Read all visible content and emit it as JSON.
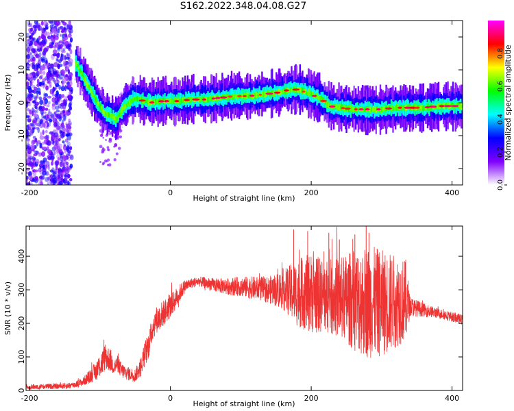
{
  "title": "S162.2022.348.04.08.G27",
  "chart_data": [
    {
      "type": "heatmap",
      "xlabel": "Height of straight line (km)",
      "ylabel": "Frequency (Hz)",
      "xlim": [
        -205,
        415
      ],
      "ylim": [
        -25,
        25
      ],
      "xticks": [
        -200,
        0,
        200,
        400
      ],
      "yticks": [
        -20,
        -10,
        0,
        10,
        20
      ],
      "colorbar": {
        "label": "Normalized spectral amplitude",
        "range": [
          0,
          1
        ],
        "ticks": [
          "0.0",
          "0.2",
          "0.4",
          "0.6",
          "0.8"
        ],
        "colors": [
          "#ffffff",
          "#8000ff",
          "#0000ff",
          "#00ffff",
          "#00ff00",
          "#ffff00",
          "#ff0000",
          "#ff00ff"
        ]
      },
      "ridge": {
        "x": [
          -135,
          -125,
          -115,
          -105,
          -95,
          -85,
          -78,
          -72,
          -66,
          -60,
          -55,
          -45,
          -30,
          -10,
          10,
          30,
          50,
          70,
          90,
          110,
          130,
          150,
          170,
          180,
          195,
          205,
          215,
          225,
          240,
          260,
          280,
          300,
          320,
          340,
          360,
          380,
          400,
          415
        ],
        "y": [
          12,
          8,
          4,
          0,
          -3,
          -4,
          -5,
          -3,
          -1,
          0,
          1,
          1,
          0,
          0.5,
          0.5,
          1,
          1,
          1.5,
          2,
          2,
          2.5,
          3,
          4,
          4,
          3,
          2,
          1,
          -1,
          -1.5,
          -2,
          -2,
          -2,
          -1.5,
          -1.5,
          -1.5,
          -1,
          -1,
          -1
        ]
      },
      "noise_region_x": [
        -205,
        -140
      ],
      "grid": false,
      "legend": "colorbar-right"
    },
    {
      "type": "line",
      "xlabel": "Height of straight line (km)",
      "ylabel": "SNR (10 * v/v)",
      "xlim": [
        -205,
        415
      ],
      "ylim": [
        0,
        490
      ],
      "xticks": [
        -200,
        0,
        200,
        400
      ],
      "yticks": [
        0,
        100,
        200,
        300,
        400
      ],
      "color": "#ee3333",
      "series": [
        {
          "x": [
            -205,
            -180,
            -160,
            -140,
            -125,
            -115,
            -105,
            -98,
            -92,
            -85,
            -80,
            -75,
            -70,
            -60,
            -50,
            -42,
            -36,
            -30,
            -25,
            -20,
            -10,
            0,
            10,
            20,
            30,
            40,
            60,
            80,
            100,
            120,
            140,
            160,
            180,
            200,
            220,
            240,
            260,
            280,
            300,
            320,
            335,
            340,
            360,
            380,
            400,
            415
          ],
          "y": [
            10,
            12,
            12,
            15,
            25,
            40,
            60,
            80,
            100,
            90,
            70,
            80,
            60,
            50,
            45,
            70,
            110,
            140,
            190,
            210,
            230,
            250,
            280,
            310,
            320,
            325,
            315,
            310,
            310,
            305,
            300,
            300,
            290,
            290,
            280,
            275,
            270,
            265,
            260,
            265,
            270,
            250,
            240,
            230,
            220,
            210
          ],
          "spread": [
            8,
            8,
            8,
            10,
            12,
            20,
            30,
            40,
            40,
            35,
            25,
            25,
            25,
            20,
            20,
            30,
            40,
            40,
            40,
            40,
            40,
            35,
            30,
            20,
            15,
            15,
            20,
            25,
            30,
            35,
            40,
            60,
            100,
            120,
            110,
            120,
            150,
            170,
            160,
            140,
            120,
            30,
            20,
            15,
            15,
            15
          ],
          "peak_x": [
            175,
            195,
            225,
            240,
            262,
            278,
            282
          ],
          "peak_y": [
            480,
            475,
            470,
            450,
            465,
            490,
            470
          ]
        }
      ],
      "grid": false
    }
  ]
}
